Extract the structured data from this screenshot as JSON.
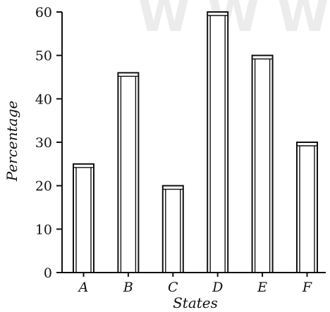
{
  "watermark": "W W W . b",
  "chart_data": {
    "type": "bar",
    "categories": [
      "A",
      "B",
      "C",
      "D",
      "E",
      "F"
    ],
    "values": [
      25,
      46,
      20,
      60,
      50,
      30
    ],
    "title": "",
    "xlabel": "States",
    "ylabel": "Percentage",
    "ylim": [
      0,
      60
    ],
    "yticks": [
      "0",
      "10",
      "20",
      "30",
      "40",
      "50",
      "60"
    ],
    "grid": false,
    "legend": "none",
    "colors": {
      "bar_fill": "#ffffff",
      "stroke": "#111111"
    }
  }
}
